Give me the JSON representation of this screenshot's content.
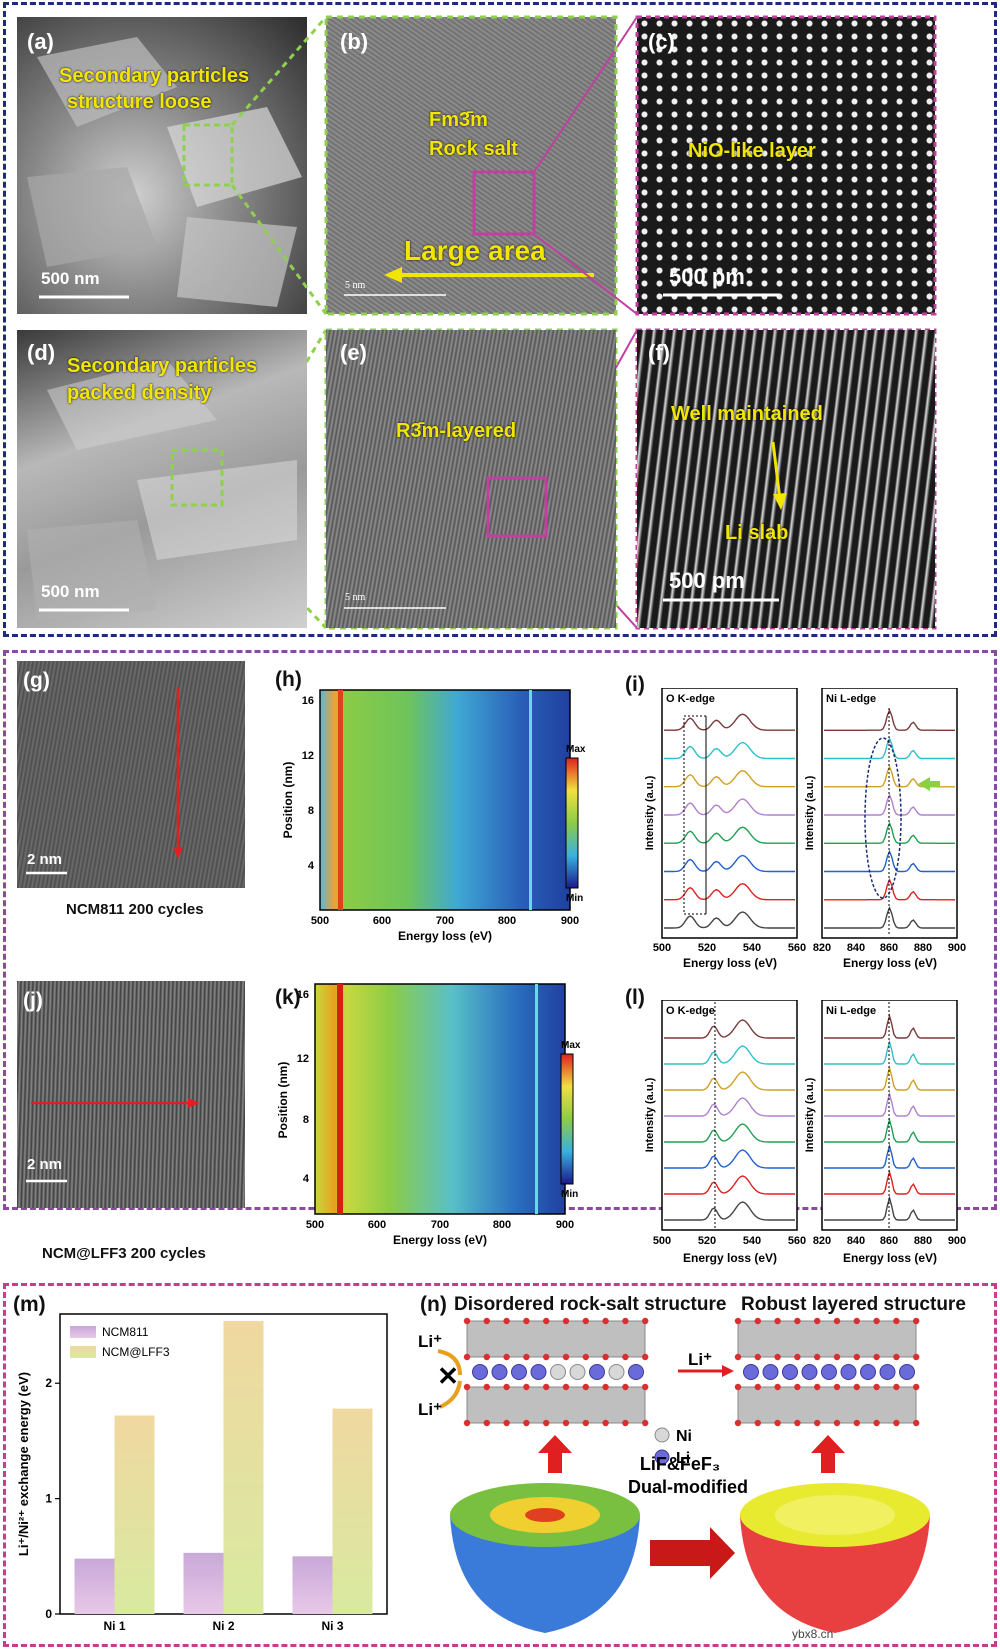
{
  "colors": {
    "frame_top": "#1f2a7a",
    "frame_mid": "#8a4aa0",
    "frame_bottom": "#c83c8c",
    "highlight_yellow": "#f2e600",
    "box_green": "#8fd14f",
    "box_magenta": "#c040a0",
    "scan_red": "#e02020",
    "bar_ncm811": "#d8b8e0",
    "bar_ncm_lff3": "#e8e8a0"
  },
  "panel_labels": {
    "a": "(a)",
    "b": "(b)",
    "c": "(c)",
    "d": "(d)",
    "e": "(e)",
    "f": "(f)",
    "g": "(g)",
    "h": "(h)",
    "i": "(i)",
    "j": "(j)",
    "k": "(k)",
    "l": "(l)",
    "m": "(m)",
    "n": "(n)"
  },
  "top": {
    "a_text1": "Secondary particles",
    "a_text2": "structure loose",
    "a_scale": "500 nm",
    "b_text1": "Fm3̄m",
    "b_text2": "Rock salt",
    "b_large": "Large area",
    "b_scale": "5 nm",
    "c_text": "NiO-like layer",
    "c_scale": "500 pm",
    "d_text1": "Secondary particles",
    "d_text2": "packed density",
    "d_scale": "500 nm",
    "e_text": "R3̄m-layered",
    "e_scale": "5 nm",
    "f_text1": "Well maintained",
    "f_text2": "Li slab",
    "f_scale": "500 pm"
  },
  "middle": {
    "g_scale": "2 nm",
    "g_caption": "NCM811 200 cycles",
    "j_scale": "2 nm",
    "j_caption": "NCM@LFF3 200 cycles",
    "colorbar_max": "Max",
    "colorbar_min": "Min",
    "o_edge": "O K-edge",
    "ni_edge": "Ni L-edge",
    "intensity_label": "Intensity (a.u.)",
    "energy_label": "Energy loss (eV)",
    "o_ticks": [
      "500",
      "520",
      "540",
      "560"
    ],
    "ni_ticks": [
      "820",
      "840",
      "860",
      "880",
      "900"
    ]
  },
  "maps": {
    "xlabel": "Energy loss (eV)",
    "ylabel": "Position (nm)",
    "xticks": [
      "500",
      "600",
      "700",
      "800",
      "900"
    ],
    "yticks": [
      "4",
      "8",
      "12",
      "16"
    ]
  },
  "bottom": {
    "n_left_title": "Disordered rock-salt structure",
    "n_right_title": "Robust layered structure",
    "li_plus": "Li⁺",
    "legend_ni": "Ni",
    "legend_li": "Li",
    "mod_line1": "LiF&FeF₃",
    "mod_line2": "Dual-modified",
    "watermark": "ybx8.cn"
  },
  "chart_data": {
    "type": "bar",
    "title": "",
    "xlabel": "",
    "ylabel": "Li⁺/Ni²⁺ exchange energy (eV)",
    "categories": [
      "Ni 1",
      "Ni 2",
      "Ni 3"
    ],
    "ylim": [
      0,
      2.6
    ],
    "yticks": [
      "0",
      "1",
      "2"
    ],
    "series": [
      {
        "name": "NCM811",
        "values": [
          0.48,
          0.53,
          0.5
        ]
      },
      {
        "name": "NCM@LFF3",
        "values": [
          1.72,
          2.54,
          1.78
        ]
      }
    ],
    "legend": "top-left"
  }
}
